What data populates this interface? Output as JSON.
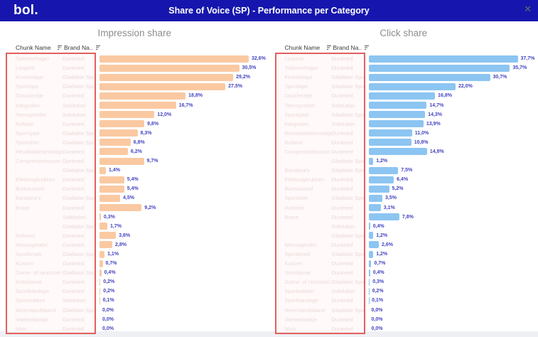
{
  "header": {
    "logo": "bol.",
    "title": "Share of Voice (SP) - Performance per Category",
    "close_icon": "✕"
  },
  "table": {
    "chunk_col": "Chunk Name",
    "brand_col": "Brand Na..",
    "sort_icon": "sort-lines-icon"
  },
  "colors": {
    "header_bg": "#1616ae",
    "impression_bar": "#fac9a2",
    "click_bar": "#8cc5f2",
    "value_label": "#4444c2",
    "redaction_border": "#e25f5f",
    "redacted_text": "#dcc6c3",
    "chart_title": "#8d8d8d"
  },
  "chart_data": [
    {
      "type": "bar",
      "orientation": "horizontal",
      "title": "Impression share",
      "bar_color": "#fac9a2",
      "xlim": [
        0,
        32.6
      ],
      "rows": [
        {
          "chunk": "Toiletverhoger",
          "brand": "Dunimed",
          "value": 32.6,
          "label": "32,6%"
        },
        {
          "chunk": "Looprek",
          "brand": "Dunimed",
          "value": 30.5,
          "label": "30,5%"
        },
        {
          "chunk": "Kinesiotape",
          "brand": "Gladiator Sports",
          "value": 29.2,
          "label": "29,2%"
        },
        {
          "chunk": "Sporttape",
          "brand": "Gladiator Sports",
          "value": 27.5,
          "label": "27,5%"
        },
        {
          "chunk": "Douchezitje",
          "brand": "Dunimed",
          "value": 18.8,
          "label": "18,8%"
        },
        {
          "chunk": "Inlegzolen",
          "brand": "Solelution",
          "value": 16.7,
          "label": "16,7%"
        },
        {
          "chunk": "Teenspreider",
          "brand": "Solelution",
          "value": 12.0,
          "label": "12,0%"
        },
        {
          "chunk": "Rollator",
          "brand": "Dunimed",
          "value": 9.8,
          "label": "9,8%"
        },
        {
          "chunk": "Sportsjaal",
          "brand": "Gladiator Sports",
          "value": 8.3,
          "label": "8,3%"
        },
        {
          "chunk": "Sportshirt",
          "brand": "Gladiator Sports",
          "value": 6.8,
          "label": "6,8%"
        },
        {
          "chunk": "Revalidatiebenodigdheden",
          "brand": "Dunimed",
          "value": 6.2,
          "label": "6,2%"
        },
        {
          "chunk": "Compressiekousen",
          "brand": "Dunimed",
          "value": 9.7,
          "label": "9,7%"
        },
        {
          "chunk": "",
          "brand": "Gladiator Sports",
          "value": 1.4,
          "label": "1,4%"
        },
        {
          "chunk": "Elleboogkrukken",
          "brand": "Dunimed",
          "value": 5.4,
          "label": "5,4%"
        },
        {
          "chunk": "Bureaustoel",
          "brand": "Dunimed",
          "value": 5.4,
          "label": "5,4%"
        },
        {
          "chunk": "Bandana's",
          "brand": "Gladiator Sports",
          "value": 4.5,
          "label": "4,5%"
        },
        {
          "chunk": "Brace",
          "brand": "Dunimed",
          "value": 9.2,
          "label": "9,2%"
        },
        {
          "chunk": "",
          "brand": "Solelution",
          "value": 0.3,
          "label": "0,3%"
        },
        {
          "chunk": "",
          "brand": "Gladiator Sports",
          "value": 1.7,
          "label": "1,7%"
        },
        {
          "chunk": "Rolstoel",
          "brand": "Dunimed",
          "value": 3.6,
          "label": "3,6%"
        },
        {
          "chunk": "Massagetafel",
          "brand": "Dunimed",
          "value": 2.8,
          "label": "2,8%"
        },
        {
          "chunk": "Sportbroek",
          "brand": "Gladiator Sports",
          "value": 1.1,
          "label": "1,1%"
        },
        {
          "chunk": "Kussen",
          "brand": "Dunimed",
          "value": 0.7,
          "label": "0,7%"
        },
        {
          "chunk": "Game- of racestoel",
          "brand": "Gladiator Sports",
          "value": 0.4,
          "label": "0,4%"
        },
        {
          "chunk": "Antislipmat",
          "brand": "Dunimed",
          "value": 0.2,
          "label": "0,2%"
        },
        {
          "chunk": "Sportbandage",
          "brand": "Dunimed",
          "value": 0.2,
          "label": "0,2%"
        },
        {
          "chunk": "Sportsokken",
          "brand": "Solelution",
          "value": 0.1,
          "label": "0,1%"
        },
        {
          "chunk": "Weerstandsband",
          "brand": "Gladiator Sports",
          "value": 0.0,
          "label": "0,0%"
        },
        {
          "chunk": "Voetenbankje",
          "brand": "Dunimed",
          "value": 0.0,
          "label": "0,0%"
        },
        {
          "chunk": "Muis",
          "brand": "Dunimed",
          "value": 0.0,
          "label": "0,0%"
        }
      ]
    },
    {
      "type": "bar",
      "orientation": "horizontal",
      "title": "Click share",
      "bar_color": "#8cc5f2",
      "xlim": [
        0,
        37.7
      ],
      "rows": [
        {
          "chunk": "Looprek",
          "brand": "Dunimed",
          "value": 37.7,
          "label": "37,7%"
        },
        {
          "chunk": "Toiletverhoger",
          "brand": "Dunimed",
          "value": 35.7,
          "label": "35,7%"
        },
        {
          "chunk": "Kinesiotape",
          "brand": "Gladiator Sports",
          "value": 30.7,
          "label": "30,7%"
        },
        {
          "chunk": "Sporttape",
          "brand": "Gladiator Sports",
          "value": 22.0,
          "label": "22,0%"
        },
        {
          "chunk": "Douchezitje",
          "brand": "Dunimed",
          "value": 16.8,
          "label": "16,8%"
        },
        {
          "chunk": "Teenspreider",
          "brand": "Solelution",
          "value": 14.7,
          "label": "14,7%"
        },
        {
          "chunk": "Sportsjaal",
          "brand": "Gladiator Sports",
          "value": 14.3,
          "label": "14,3%"
        },
        {
          "chunk": "Inlegzolen",
          "brand": "Solelution",
          "value": 13.9,
          "label": "13,9%"
        },
        {
          "chunk": "Revalidatiebenodigdheden",
          "brand": "Dunimed",
          "value": 11.0,
          "label": "11,0%"
        },
        {
          "chunk": "Rollator",
          "brand": "Dunimed",
          "value": 10.8,
          "label": "10,8%"
        },
        {
          "chunk": "Compressiekousen",
          "brand": "Dunimed",
          "value": 14.8,
          "label": "14,8%"
        },
        {
          "chunk": "",
          "brand": "Gladiator Sports",
          "value": 1.2,
          "label": "1,2%"
        },
        {
          "chunk": "Bandana's",
          "brand": "Gladiator Sports",
          "value": 7.5,
          "label": "7,5%"
        },
        {
          "chunk": "Elleboogkrukken",
          "brand": "Dunimed",
          "value": 6.4,
          "label": "6,4%"
        },
        {
          "chunk": "Bureaustoel",
          "brand": "Dunimed",
          "value": 5.2,
          "label": "5,2%"
        },
        {
          "chunk": "Sportshirt",
          "brand": "Gladiator Sports",
          "value": 3.5,
          "label": "3,5%"
        },
        {
          "chunk": "Rolstoel",
          "brand": "Dunimed",
          "value": 3.1,
          "label": "3,1%"
        },
        {
          "chunk": "Brace",
          "brand": "Dunimed",
          "value": 7.8,
          "label": "7,8%"
        },
        {
          "chunk": "",
          "brand": "Solelution",
          "value": 0.4,
          "label": "0,4%"
        },
        {
          "chunk": "",
          "brand": "Gladiator Sports",
          "value": 1.2,
          "label": "1,2%"
        },
        {
          "chunk": "Massagetafel",
          "brand": "Dunimed",
          "value": 2.6,
          "label": "2,6%"
        },
        {
          "chunk": "Sportbroek",
          "brand": "Gladiator Sports",
          "value": 1.2,
          "label": "1,2%"
        },
        {
          "chunk": "Kussen",
          "brand": "Dunimed",
          "value": 0.7,
          "label": "0,7%"
        },
        {
          "chunk": "Antislipmat",
          "brand": "Dunimed",
          "value": 0.4,
          "label": "0,4%"
        },
        {
          "chunk": "Game- of racestoel",
          "brand": "Gladiator Sports",
          "value": 0.3,
          "label": "0,3%"
        },
        {
          "chunk": "Sportsokken",
          "brand": "Solelution",
          "value": 0.2,
          "label": "0,2%"
        },
        {
          "chunk": "Sportbandage",
          "brand": "Dunimed",
          "value": 0.1,
          "label": "0,1%"
        },
        {
          "chunk": "Weerstandsband",
          "brand": "Gladiator Sports",
          "value": 0.0,
          "label": "0,0%"
        },
        {
          "chunk": "Voetenbankje",
          "brand": "Dunimed",
          "value": 0.0,
          "label": "0,0%"
        },
        {
          "chunk": "Muis",
          "brand": "Dunimed",
          "value": 0.0,
          "label": "0,0%"
        }
      ]
    }
  ]
}
